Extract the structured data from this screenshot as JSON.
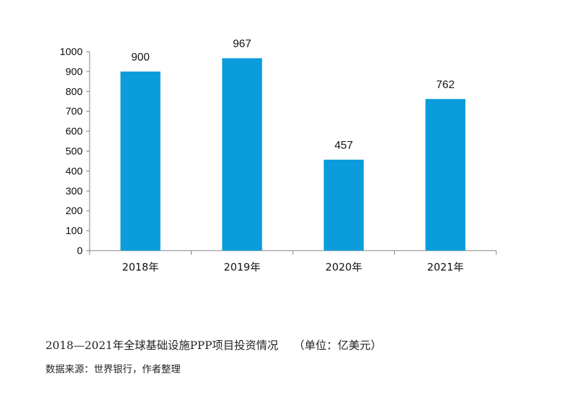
{
  "chart_data": {
    "type": "bar",
    "categories": [
      "2018年",
      "2019年",
      "2020年",
      "2021年"
    ],
    "values": [
      900,
      967,
      457,
      762
    ],
    "data_labels": [
      "900",
      "967",
      "457",
      "762"
    ],
    "ylim": [
      0,
      1000
    ],
    "yticks": [
      0,
      100,
      200,
      300,
      400,
      500,
      600,
      700,
      800,
      900,
      1000
    ],
    "grid": false,
    "bar_color": "#0b9ddb",
    "axis_color": "#7f7f7f"
  },
  "caption": {
    "title": "2018—2021年全球基础设施PPP项目投资情况",
    "unit": "（单位：亿美元）"
  },
  "source": "数据来源：世界银行，作者整理"
}
